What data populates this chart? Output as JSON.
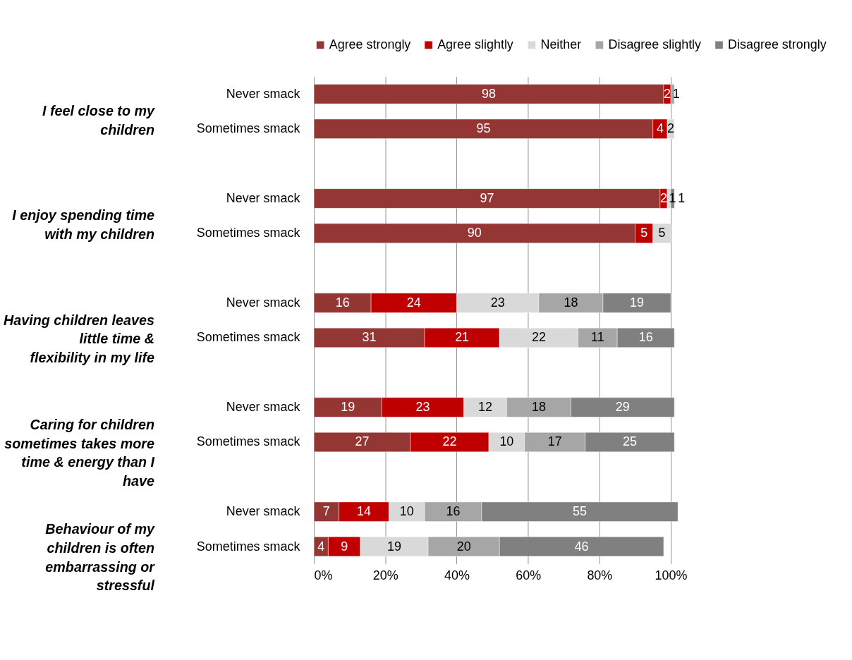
{
  "chart_data": {
    "type": "bar",
    "orientation": "horizontal",
    "stacked": true,
    "categories": [
      "Never smack",
      "Sometimes smack",
      "Never smack",
      "Sometimes smack",
      "Never smack",
      "Sometimes smack",
      "Never smack",
      "Sometimes smack",
      "Never smack",
      "Sometimes smack"
    ],
    "series": [
      {
        "name": "Agree strongly",
        "color": "#943634",
        "values": [
          98,
          95,
          97,
          90,
          16,
          31,
          19,
          27,
          7,
          4
        ]
      },
      {
        "name": "Agree slightly",
        "color": "#c00000",
        "values": [
          2,
          4,
          2,
          5,
          24,
          21,
          23,
          22,
          14,
          9
        ]
      },
      {
        "name": "Neither",
        "color": "#d9d9d9",
        "values": [
          null,
          2,
          1,
          5,
          23,
          22,
          12,
          10,
          10,
          19
        ]
      },
      {
        "name": "Disagree slightly",
        "color": "#a6a6a6",
        "values": [
          1,
          null,
          null,
          null,
          18,
          11,
          18,
          17,
          16,
          20
        ]
      },
      {
        "name": "Disagree strongly",
        "color": "#808080",
        "values": [
          null,
          null,
          1,
          null,
          19,
          16,
          29,
          25,
          55,
          46
        ]
      }
    ],
    "annotations": [
      "I feel close to my children",
      "I enjoy spending time with my children",
      "Having children leaves little time & flexibility in my life",
      "Caring for children sometimes takes more time & energy than I have",
      "Behaviour of my children is often embarrassing or stressful"
    ],
    "xlim": [
      0,
      102
    ],
    "xticks": [
      {
        "value": 0,
        "label": "0%"
      },
      {
        "value": 20,
        "label": "20%"
      },
      {
        "value": 40,
        "label": "40%"
      },
      {
        "value": 60,
        "label": "60%"
      },
      {
        "value": 80,
        "label": "80%"
      },
      {
        "value": 100,
        "label": "100%"
      }
    ],
    "grid": "x",
    "legend": "top",
    "data_labels": true
  }
}
